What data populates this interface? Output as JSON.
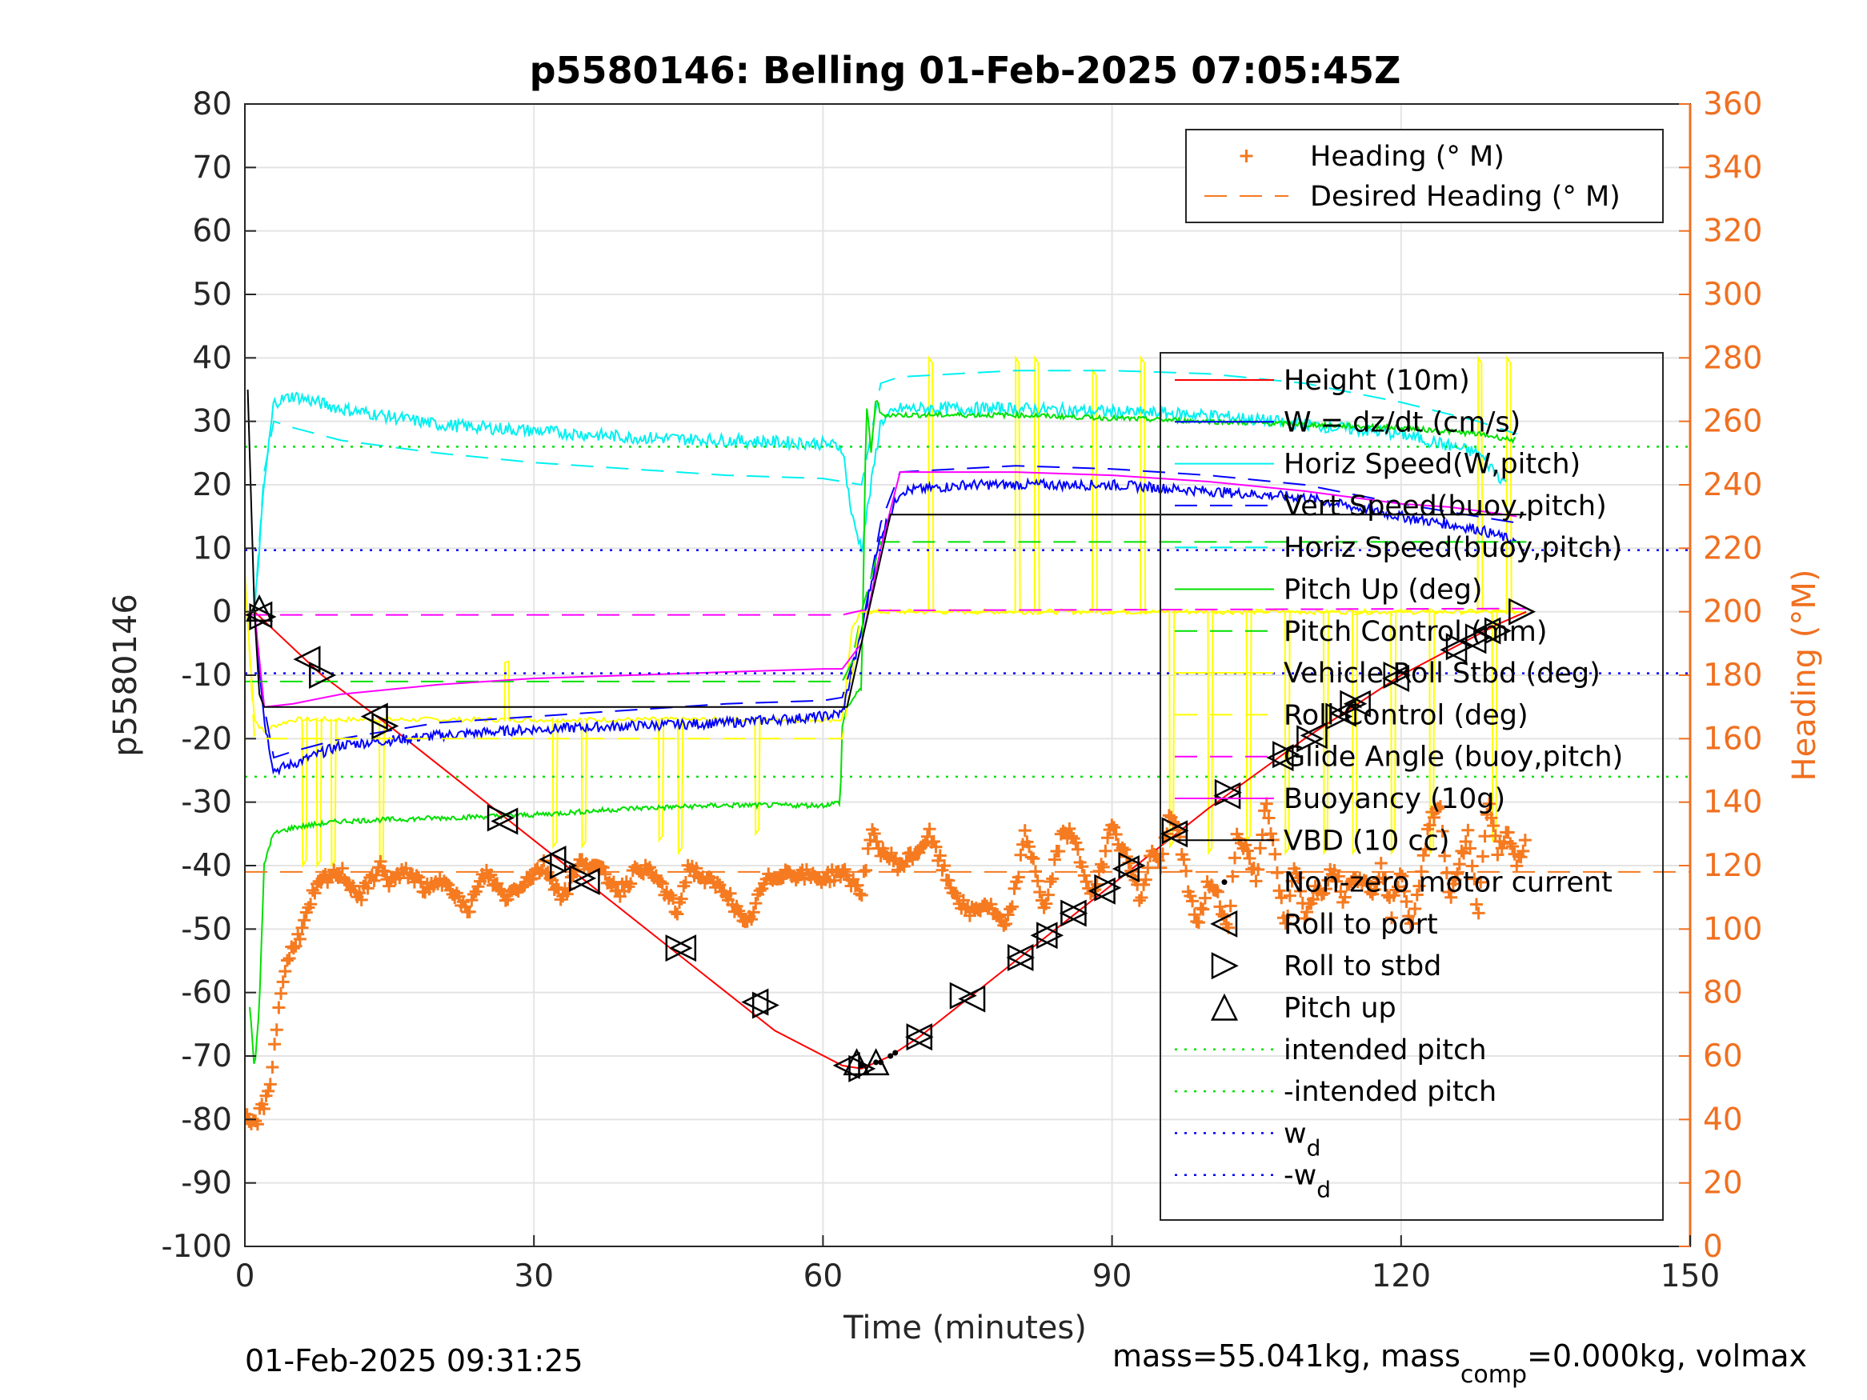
{
  "chart_data": {
    "type": "line",
    "title": "p5580146: Belling 01-Feb-2025 07:05:45Z",
    "xlabel": "Time (minutes)",
    "ylabel": "p5580146",
    "y2label": "Heading (°M)",
    "xlim": [
      0,
      150
    ],
    "ylim": [
      -100,
      80
    ],
    "y2lim": [
      0,
      360
    ],
    "xticks": [
      "0",
      "30",
      "60",
      "90",
      "120",
      "150"
    ],
    "yticks": [
      "80",
      "70",
      "60",
      "50",
      "40",
      "30",
      "20",
      "10",
      "0",
      "-10",
      "-20",
      "-30",
      "-40",
      "-50",
      "-60",
      "-70",
      "-80",
      "-90",
      "-100"
    ],
    "y2ticks": [
      "360",
      "340",
      "320",
      "300",
      "280",
      "260",
      "240",
      "220",
      "200",
      "180",
      "160",
      "140",
      "120",
      "100",
      "80",
      "60",
      "40",
      "20",
      "0"
    ],
    "grid": true,
    "footer_left": "01-Feb-2025 09:31:25",
    "footer_right": {
      "a": "mass=55.041kg, mass",
      "sub": "comp",
      "b": "=0.000kg, volmax"
    },
    "legend_top": [
      {
        "label": "Heading (° M)",
        "color": "#f57a20",
        "style": "plus"
      },
      {
        "label": "Desired Heading (° M)",
        "color": "#f57a20",
        "style": "dash"
      }
    ],
    "legend_main": [
      {
        "label": "Height (10m)",
        "color": "#ff0000",
        "style": "solid"
      },
      {
        "label": "W = dz/dt (cm/s)",
        "color": "#0000ff",
        "style": "solid"
      },
      {
        "label": "Horiz Speed(W,pitch)",
        "color": "#00f0f0",
        "style": "solid"
      },
      {
        "label": "Vert Speed(buoy,pitch)",
        "color": "#0000ff",
        "style": "dash"
      },
      {
        "label": "Horiz Speed(buoy,pitch)",
        "color": "#00f0f0",
        "style": "dash"
      },
      {
        "label": "Pitch Up (deg)",
        "color": "#00e000",
        "style": "solid"
      },
      {
        "label": "Pitch Control (mm)",
        "color": "#00e000",
        "style": "dash"
      },
      {
        "label": "Vehicle Roll Stbd (deg)",
        "color": "#ffff00",
        "style": "solid"
      },
      {
        "label": "Roll Control (deg)",
        "color": "#ffff00",
        "style": "dash"
      },
      {
        "label": "Glide Angle (buoy,pitch)",
        "color": "#ff00ff",
        "style": "dash"
      },
      {
        "label": "Buoyancy (10g)",
        "color": "#ff00ff",
        "style": "solid"
      },
      {
        "label": "VBD (10 cc)",
        "color": "#000000",
        "style": "solid"
      },
      {
        "label": "Non-zero motor current",
        "color": "#000000",
        "style": "dot"
      },
      {
        "label": "Roll to port",
        "color": "#000000",
        "style": "tri-left"
      },
      {
        "label": "Roll to stbd",
        "color": "#000000",
        "style": "tri-right"
      },
      {
        "label": "Pitch up",
        "color": "#000000",
        "style": "tri-up"
      },
      {
        "label": "intended pitch",
        "color": "#00e000",
        "style": "dotted"
      },
      {
        "label": "-intended pitch",
        "color": "#00e000",
        "style": "dotted"
      },
      {
        "label": "w",
        "sub": "d",
        "color": "#0000ff",
        "style": "dotted"
      },
      {
        "label": "-w",
        "sub": "d",
        "color": "#0000ff",
        "style": "dotted"
      }
    ],
    "series": [
      {
        "name": "Height (10m)",
        "color": "#ff0000",
        "dash": "",
        "x": [
          1,
          8,
          15,
          30,
          45,
          55,
          62,
          64,
          67,
          70,
          80,
          90,
          100,
          110,
          120,
          130,
          133
        ],
        "y": [
          0,
          -10,
          -18,
          -36,
          -54,
          -66,
          -71.5,
          -72,
          -70,
          -67,
          -55,
          -43,
          -31,
          -20,
          -10,
          -2,
          0
        ]
      },
      {
        "name": "W = dz/dt (cm/s)",
        "color": "#0000ff",
        "dash": "",
        "noise": 0.8,
        "x": [
          1,
          2,
          3,
          5,
          10,
          20,
          30,
          40,
          50,
          60,
          62,
          64,
          66,
          68,
          75,
          80,
          90,
          100,
          110,
          120,
          128,
          132
        ],
        "y": [
          0,
          -17,
          -25,
          -24,
          -21,
          -19.5,
          -18.5,
          -18,
          -17.5,
          -16.5,
          -16,
          -3,
          12,
          19,
          20,
          20,
          20,
          19,
          18,
          15,
          13,
          11
        ]
      },
      {
        "name": "Horiz Speed(W,pitch)",
        "color": "#00f0f0",
        "dash": "",
        "noise": 1.0,
        "x": [
          1,
          2,
          3,
          5,
          10,
          20,
          30,
          40,
          50,
          60,
          62,
          63,
          64,
          66,
          68,
          75,
          80,
          90,
          100,
          110,
          120,
          128,
          131
        ],
        "y": [
          0,
          20,
          33,
          34,
          32,
          29.5,
          28.5,
          27.5,
          27,
          26.5,
          26,
          15,
          10,
          30,
          32,
          32,
          32,
          31.5,
          31,
          29.5,
          28,
          25,
          20
        ]
      },
      {
        "name": "Vert Speed(buoy,pitch)",
        "color": "#0000ff",
        "dash": "28,16",
        "x": [
          1,
          2,
          3,
          5,
          10,
          20,
          30,
          40,
          50,
          60,
          62,
          64,
          66,
          68,
          80,
          90,
          100,
          110,
          120,
          128,
          132
        ],
        "y": [
          0,
          -15,
          -23,
          -22,
          -20,
          -17.5,
          -16.5,
          -15.5,
          -14.5,
          -14,
          -13.5,
          -3,
          14,
          22,
          23,
          22.5,
          21.5,
          20,
          17,
          15,
          14
        ]
      },
      {
        "name": "Horiz Speed(buoy,pitch)",
        "color": "#00f0f0",
        "dash": "28,16",
        "x": [
          1,
          2,
          3,
          5,
          10,
          20,
          30,
          40,
          50,
          60,
          62,
          64,
          66,
          68,
          80,
          90,
          100,
          110,
          120,
          128,
          132
        ],
        "y": [
          0,
          22,
          30,
          29,
          27,
          25,
          23.5,
          22.5,
          21.5,
          21,
          20.5,
          20,
          36,
          37,
          38,
          38,
          37.5,
          36,
          33,
          30,
          28
        ]
      },
      {
        "name": "Pitch Up (deg)",
        "color": "#00e000",
        "dash": "",
        "noise": 0.4,
        "x": [
          0.5,
          1,
          1.5,
          2,
          2.5,
          3,
          5,
          10,
          20,
          30,
          40,
          50,
          60,
          61.8,
          62,
          62.5,
          64,
          64.5,
          65,
          65.5,
          66,
          67,
          70,
          80,
          90,
          100,
          110,
          120,
          128,
          132
        ],
        "y": [
          -62,
          -72,
          -62,
          -40,
          -37,
          -35,
          -34,
          -33,
          -32.5,
          -32,
          -31,
          -30.5,
          -30.5,
          -30,
          -18,
          -15,
          -12,
          33,
          25,
          34,
          31,
          31,
          31,
          31,
          30.5,
          30,
          29.5,
          29,
          28,
          27
        ]
      },
      {
        "name": "Pitch Control (mm)",
        "color": "#00e000",
        "dash": "28,16",
        "x": [
          0,
          62,
          63,
          64,
          66,
          70,
          133
        ],
        "y": [
          -11,
          -11,
          -8,
          0,
          11,
          11,
          11
        ]
      },
      {
        "name": "Roll Control (deg)",
        "color": "#ffff00",
        "dash": "28,16",
        "x": [
          0,
          1,
          2,
          3,
          62,
          64,
          133
        ],
        "y": [
          6,
          -20,
          -20,
          -20,
          -20,
          0,
          0
        ]
      },
      {
        "name": "Glide Angle (buoy,pitch)",
        "color": "#ff00ff",
        "dash": "28,16",
        "x": [
          0,
          62,
          64,
          133
        ],
        "y": [
          -0.5,
          -0.5,
          0.2,
          0.5
        ]
      },
      {
        "name": "Buoyancy (10g)",
        "color": "#ff00ff",
        "dash": "",
        "x": [
          1,
          2,
          5,
          10,
          20,
          30,
          40,
          50,
          60,
          62,
          64,
          66,
          68,
          80,
          90,
          100,
          110,
          120,
          125,
          130,
          132
        ],
        "y": [
          0,
          -15,
          -14.5,
          -13,
          -11.5,
          -10.5,
          -10,
          -9.5,
          -9,
          -9,
          -5,
          10,
          22,
          22,
          21.5,
          20.5,
          19,
          17,
          16.5,
          15.5,
          15
        ]
      },
      {
        "name": "VBD (10 cc)",
        "color": "#000000",
        "dash": "",
        "x": [
          0.3,
          0.6,
          1,
          1.5,
          2,
          62,
          62.5,
          67,
          133
        ],
        "y": [
          35,
          20,
          0,
          -13,
          -15,
          -15,
          -15,
          15.3,
          15.3
        ]
      },
      {
        "name": "intended pitch",
        "color": "#00e000",
        "dash": "3,9",
        "x": [
          0,
          150
        ],
        "y": [
          26,
          26
        ]
      },
      {
        "name": "-intended pitch",
        "color": "#00e000",
        "dash": "3,9",
        "x": [
          0,
          150
        ],
        "y": [
          -26,
          -26
        ]
      },
      {
        "name": "w_d",
        "color": "#0000ff",
        "dash": "3,9",
        "x": [
          0,
          150
        ],
        "y": [
          9.7,
          9.7
        ]
      },
      {
        "name": "-w_d",
        "color": "#0000ff",
        "dash": "3,9",
        "x": [
          0,
          150
        ],
        "y": [
          -9.7,
          -9.7
        ]
      }
    ],
    "roll": {
      "name": "Vehicle Roll Stbd (deg)",
      "color": "#ffff00",
      "baseline": [
        [
          0,
          5
        ],
        [
          1,
          -17
        ],
        [
          2,
          -19
        ],
        [
          3,
          -18
        ],
        [
          5,
          -17
        ],
        [
          62,
          -17
        ],
        [
          63,
          -3
        ],
        [
          64,
          0
        ],
        [
          133,
          0
        ]
      ],
      "spikes": [
        [
          6,
          -40
        ],
        [
          7.5,
          -40
        ],
        [
          9,
          -40
        ],
        [
          14,
          -40
        ],
        [
          27,
          -8
        ],
        [
          32,
          -37
        ],
        [
          35,
          -37
        ],
        [
          43,
          -36
        ],
        [
          45,
          -38
        ],
        [
          53,
          -35
        ],
        [
          71,
          40
        ],
        [
          80,
          40
        ],
        [
          82,
          40
        ],
        [
          88,
          38
        ],
        [
          93,
          40
        ],
        [
          96,
          -37
        ],
        [
          100,
          -38
        ],
        [
          104,
          -36
        ],
        [
          108,
          -38
        ],
        [
          112,
          -38
        ],
        [
          115,
          -38
        ],
        [
          119,
          -38
        ],
        [
          123,
          -38
        ],
        [
          128,
          40
        ],
        [
          129.5,
          -36
        ],
        [
          131,
          40
        ]
      ]
    },
    "heading": {
      "name": "Heading (° M)",
      "color": "#f57a20",
      "x": [
        0,
        1,
        2,
        2.5,
        3,
        3.5,
        4,
        5,
        6,
        7,
        8,
        10,
        12,
        14,
        15,
        17,
        19,
        21,
        23,
        25,
        27,
        29,
        31,
        33,
        35,
        37,
        39,
        41,
        43,
        45,
        46,
        48,
        50,
        52,
        54,
        56,
        58,
        60,
        62,
        64,
        65,
        66,
        68,
        70,
        71,
        73,
        75,
        77,
        79,
        80,
        81,
        82,
        83,
        84,
        85,
        86,
        88,
        89,
        90,
        91,
        92,
        93,
        94,
        95,
        96,
        97,
        98,
        99,
        100,
        101,
        102,
        103,
        104,
        105,
        106,
        107,
        108,
        109,
        110,
        111,
        112,
        113,
        114,
        115,
        116,
        117,
        118,
        119,
        120,
        121,
        122,
        123,
        124,
        125,
        126,
        127,
        128,
        129,
        130,
        131,
        132,
        133
      ],
      "y": [
        40,
        38,
        45,
        50,
        60,
        75,
        85,
        95,
        100,
        110,
        115,
        118,
        110,
        120,
        115,
        118,
        112,
        116,
        105,
        118,
        110,
        115,
        120,
        110,
        122,
        118,
        112,
        120,
        115,
        105,
        120,
        115,
        112,
        100,
        115,
        118,
        117,
        116,
        118,
        112,
        130,
        125,
        120,
        125,
        130,
        115,
        105,
        108,
        100,
        113,
        130,
        120,
        105,
        120,
        132,
        128,
        110,
        120,
        135,
        125,
        120,
        108,
        125,
        120,
        135,
        130,
        110,
        102,
        115,
        110,
        100,
        130,
        125,
        115,
        142,
        120,
        100,
        120,
        105,
        112,
        113,
        120,
        110,
        118,
        115,
        112,
        120,
        105,
        120,
        100,
        115,
        135,
        140,
        110,
        120,
        130,
        105,
        140,
        125,
        130,
        120,
        128
      ]
    },
    "desired_heading": {
      "name": "Desired Heading (° M)",
      "value": 118
    },
    "markers_roll_port": [
      [
        1.5,
        -0.5
      ],
      [
        6.5,
        -7.5
      ],
      [
        13.5,
        -16.5
      ],
      [
        27,
        -33
      ],
      [
        32,
        -39
      ],
      [
        35.5,
        -42.5
      ],
      [
        45.5,
        -53
      ],
      [
        53,
        -61.5
      ],
      [
        62.5,
        -71.5
      ],
      [
        70,
        -67
      ],
      [
        75.5,
        -61
      ],
      [
        80.5,
        -54.5
      ],
      [
        83,
        -51
      ],
      [
        86,
        -47.5
      ],
      [
        89,
        -44
      ],
      [
        91.5,
        -40.5
      ],
      [
        96.5,
        -35
      ],
      [
        102,
        -29
      ],
      [
        107.5,
        -23
      ],
      [
        111,
        -19.5
      ],
      [
        114,
        -16
      ],
      [
        115.5,
        -14.5
      ],
      [
        119.5,
        -10.5
      ],
      [
        125.5,
        -6
      ],
      [
        127.5,
        -4.5
      ],
      [
        129,
        -3
      ]
    ],
    "markers_roll_stbd": [
      [
        1.8,
        -0.8
      ],
      [
        8,
        -10
      ],
      [
        14.5,
        -18
      ],
      [
        26.5,
        -32.5
      ],
      [
        33,
        -40
      ],
      [
        35,
        -42
      ],
      [
        45,
        -53
      ],
      [
        54,
        -62
      ],
      [
        64,
        -72
      ],
      [
        70,
        -67
      ],
      [
        74.5,
        -60.5
      ],
      [
        80.5,
        -54.5
      ],
      [
        83.5,
        -51
      ],
      [
        86,
        -47.5
      ],
      [
        89.5,
        -43.5
      ],
      [
        92,
        -40
      ],
      [
        96.5,
        -34.5
      ],
      [
        102,
        -28.5
      ],
      [
        108,
        -22.5
      ],
      [
        110.5,
        -20
      ],
      [
        113.5,
        -16.5
      ],
      [
        115,
        -14.5
      ],
      [
        119.5,
        -10
      ],
      [
        126,
        -5.5
      ],
      [
        128,
        -4
      ],
      [
        130,
        -3
      ],
      [
        132.5,
        0
      ]
    ],
    "markers_pitch_up": [
      [
        1.5,
        0.5
      ],
      [
        63.5,
        -71
      ],
      [
        65.5,
        -71
      ]
    ],
    "motor_dots": [
      [
        64,
        -71.5
      ],
      [
        65.5,
        -71
      ],
      [
        67,
        -70
      ],
      [
        67.5,
        -69.5
      ],
      [
        66,
        -71
      ]
    ]
  }
}
